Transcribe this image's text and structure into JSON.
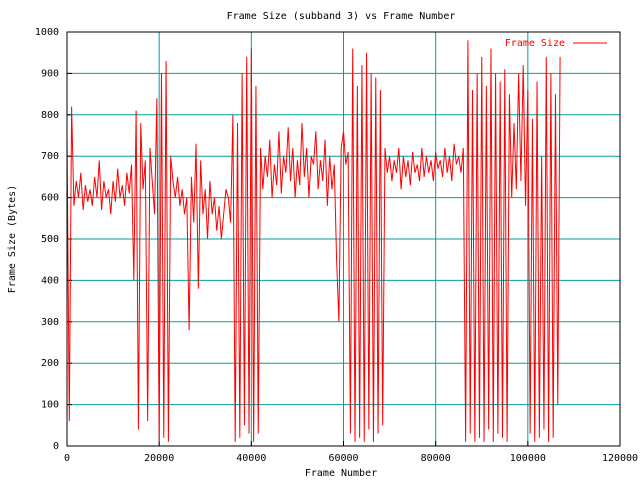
{
  "chart_data": {
    "type": "line",
    "title": "Frame Size (subband 3) vs Frame Number",
    "x_label": "Frame Number",
    "y_label": "Frame Size (Bytes)",
    "xlim": [
      0,
      120000
    ],
    "ylim": [
      0,
      1000
    ],
    "xticks": [
      0,
      20000,
      40000,
      60000,
      80000,
      100000,
      120000
    ],
    "yticks": [
      0,
      100,
      200,
      300,
      400,
      500,
      600,
      700,
      800,
      900,
      1000
    ],
    "grid": true,
    "legend": "top-right",
    "x": [
      0,
      500,
      1000,
      1500,
      2000,
      2500,
      3000,
      3500,
      4000,
      4500,
      5000,
      5500,
      6000,
      6500,
      7000,
      7500,
      8000,
      8500,
      9000,
      9500,
      10000,
      10500,
      11000,
      11500,
      12000,
      12500,
      13000,
      13500,
      14000,
      14500,
      15000,
      15500,
      16000,
      16500,
      17000,
      17500,
      18000,
      18500,
      19000,
      19500,
      20000,
      20500,
      21000,
      21500,
      22000,
      22500,
      23000,
      23500,
      24000,
      24500,
      25000,
      25500,
      26000,
      26500,
      27000,
      27500,
      28000,
      28500,
      29000,
      29500,
      30000,
      30500,
      31000,
      31500,
      32000,
      32500,
      33000,
      33500,
      34000,
      34500,
      35000,
      35500,
      36000,
      36500,
      37000,
      37500,
      38000,
      38500,
      39000,
      39500,
      40000,
      40500,
      41000,
      41500,
      42000,
      42500,
      43000,
      43500,
      44000,
      44500,
      45000,
      45500,
      46000,
      46500,
      47000,
      47500,
      48000,
      48500,
      49000,
      49500,
      50000,
      50500,
      51000,
      51500,
      52000,
      52500,
      53000,
      53500,
      54000,
      54500,
      55000,
      55500,
      56000,
      56500,
      57000,
      57500,
      58000,
      58500,
      59000,
      59500,
      60000,
      60500,
      61000,
      61500,
      62000,
      62500,
      63000,
      63500,
      64000,
      64500,
      65000,
      65500,
      66000,
      66500,
      67000,
      67500,
      68000,
      68500,
      69000,
      69500,
      70000,
      70500,
      71000,
      71500,
      72000,
      72500,
      73000,
      73500,
      74000,
      74500,
      75000,
      75500,
      76000,
      76500,
      77000,
      77500,
      78000,
      78500,
      79000,
      79500,
      80000,
      80500,
      81000,
      81500,
      82000,
      82500,
      83000,
      83500,
      84000,
      84500,
      85000,
      85500,
      86000,
      86500,
      87000,
      87500,
      88000,
      88500,
      89000,
      89500,
      90000,
      90500,
      91000,
      91500,
      92000,
      92500,
      93000,
      93500,
      94000,
      94500,
      95000,
      95500,
      96000,
      96500,
      97000,
      97500,
      98000,
      98500,
      99000,
      99500,
      100000,
      100500,
      101000,
      101500,
      102000,
      102500,
      103000,
      103500,
      104000,
      104500,
      105000,
      105500,
      106000,
      106500,
      107000
    ],
    "series": [
      {
        "name": "Frame Size",
        "color": "#ff0000",
        "values": [
          750,
          60,
          820,
          580,
          640,
          600,
          660,
          570,
          630,
          590,
          620,
          580,
          650,
          600,
          690,
          570,
          640,
          600,
          620,
          560,
          640,
          590,
          670,
          600,
          630,
          580,
          660,
          610,
          680,
          400,
          810,
          40,
          780,
          620,
          690,
          60,
          720,
          640,
          560,
          840,
          10,
          900,
          20,
          930,
          10,
          700,
          640,
          600,
          650,
          580,
          620,
          560,
          600,
          280,
          650,
          540,
          730,
          380,
          690,
          560,
          620,
          500,
          640,
          560,
          600,
          520,
          580,
          500,
          560,
          620,
          600,
          540,
          800,
          10,
          780,
          20,
          900,
          50,
          940,
          30,
          960,
          10,
          870,
          30,
          720,
          620,
          700,
          650,
          740,
          600,
          680,
          630,
          760,
          610,
          700,
          660,
          770,
          640,
          720,
          600,
          690,
          630,
          780,
          650,
          720,
          600,
          700,
          680,
          760,
          620,
          690,
          640,
          740,
          580,
          700,
          620,
          680,
          450,
          300,
          720,
          760,
          680,
          710,
          30,
          960,
          10,
          870,
          20,
          920,
          10,
          950,
          40,
          900,
          10,
          890,
          30,
          860,
          50,
          720,
          660,
          700,
          640,
          690,
          660,
          720,
          620,
          700,
          650,
          690,
          630,
          710,
          660,
          680,
          640,
          720,
          650,
          700,
          660,
          690,
          640,
          710,
          670,
          690,
          650,
          720,
          660,
          700,
          640,
          730,
          680,
          700,
          660,
          720,
          10,
          980,
          30,
          860,
          10,
          900,
          20,
          940,
          10,
          870,
          40,
          960,
          10,
          900,
          30,
          880,
          20,
          910,
          10,
          850,
          600,
          780,
          620,
          900,
          640,
          920,
          580,
          860,
          30,
          790,
          10,
          880,
          20,
          700,
          40,
          940,
          10,
          900,
          20,
          850,
          100,
          940
        ]
      }
    ]
  }
}
